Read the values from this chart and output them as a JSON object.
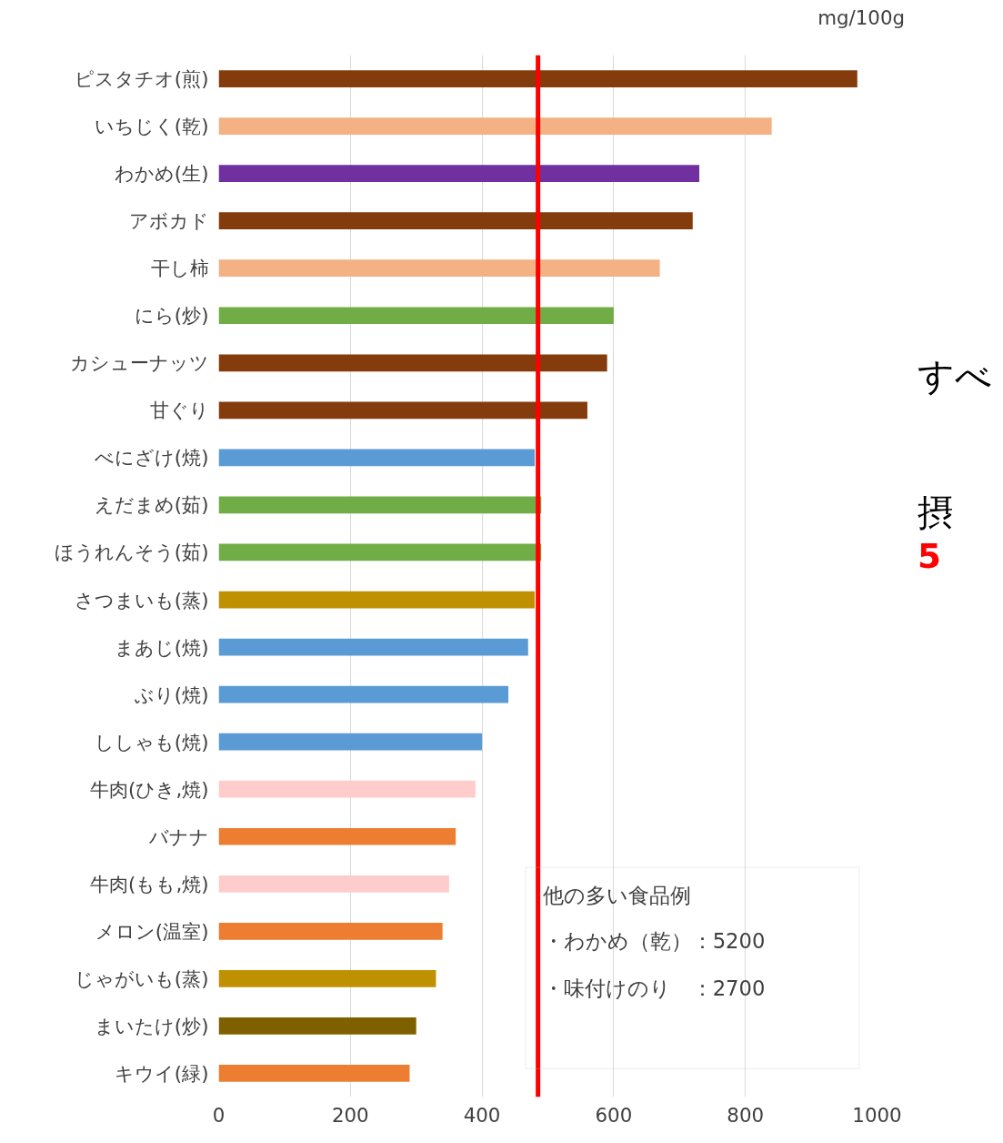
{
  "chart_data": {
    "type": "bar",
    "orientation": "horizontal",
    "categories": [
      "ピスタチオ(煎)",
      "いちじく(乾)",
      "わかめ(生)",
      "アボカド",
      "干し柿",
      "にら(炒)",
      "カシューナッツ",
      "甘ぐり",
      "べにざけ(焼)",
      "えだまめ(茹)",
      "ほうれんそう(茹)",
      "さつまいも(蒸)",
      "まあじ(焼)",
      "ぶり(焼)",
      "ししゃも(焼)",
      "牛肉(ひき,焼)",
      "バナナ",
      "牛肉(もも,焼)",
      "メロン(温室)",
      "じゃがいも(蒸)",
      "まいたけ(炒)",
      "キウイ(緑)"
    ],
    "values": [
      970,
      840,
      730,
      720,
      670,
      600,
      590,
      560,
      480,
      490,
      490,
      480,
      470,
      440,
      400,
      390,
      360,
      350,
      340,
      330,
      300,
      290
    ],
    "colors": [
      "#843c0c",
      "#f4b183",
      "#7030a0",
      "#843c0c",
      "#f4b183",
      "#70ad47",
      "#843c0c",
      "#843c0c",
      "#5b9bd5",
      "#70ad47",
      "#70ad47",
      "#bf9000",
      "#5b9bd5",
      "#5b9bd5",
      "#5b9bd5",
      "#ffcccc",
      "#ed7d31",
      "#ffcccc",
      "#ed7d31",
      "#bf9000",
      "#7f6000",
      "#ed7d31"
    ],
    "xlim": [
      0,
      1000
    ],
    "xticks": [
      0,
      200,
      400,
      600,
      800,
      1000
    ],
    "grid": "x",
    "ref_lines": [
      {
        "axis": "x",
        "value": 485,
        "color": "#ff0000"
      }
    ],
    "annotations": [
      "mg/100g",
      "他の多い食品例",
      "・わかめ（乾）：5200",
      "・味付けのり　：2700",
      "すべ",
      "摂",
      "5"
    ]
  }
}
